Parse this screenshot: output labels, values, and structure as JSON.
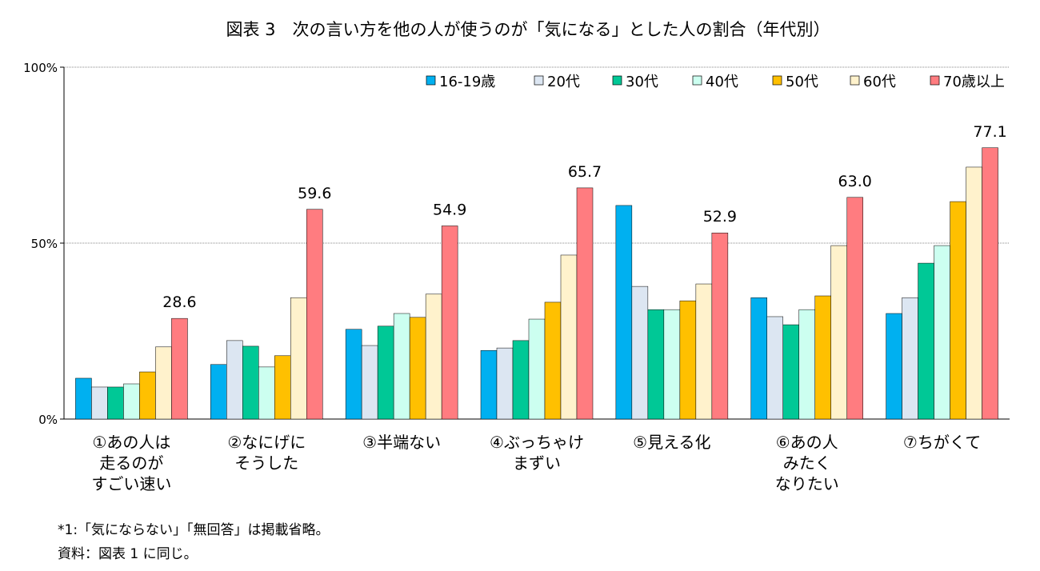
{
  "chart_data": {
    "type": "bar",
    "title": "図表 3　次の言い方を他の人が使うのが「気になる」とした人の割合（年代別）",
    "ylim": [
      0,
      100
    ],
    "yticks": [
      "0%",
      "50%",
      "100%"
    ],
    "grid": true,
    "legend_position": "top-right",
    "categories": [
      [
        "①あの人は",
        "走るのが",
        "すごい速い"
      ],
      [
        "②なにげに",
        "そうした"
      ],
      [
        "③半端ない"
      ],
      [
        "④ぶっちゃけ",
        "まずい"
      ],
      [
        "⑤見える化"
      ],
      [
        "⑥あの人",
        "みたく",
        "なりたい"
      ],
      [
        "⑦ちがくて"
      ]
    ],
    "series": [
      {
        "name": "16-19歳",
        "color": "#00b0f0",
        "values": [
          11.6,
          15.5,
          25.5,
          19.5,
          60.7,
          34.5,
          30.0
        ]
      },
      {
        "name": "20代",
        "color": "#dce6f2",
        "values": [
          9.1,
          22.3,
          20.9,
          20.2,
          37.7,
          29.1,
          34.5
        ]
      },
      {
        "name": "30代",
        "color": "#00c896",
        "values": [
          9.1,
          20.7,
          26.4,
          22.3,
          31.1,
          26.8,
          44.3
        ]
      },
      {
        "name": "40代",
        "color": "#ccfff0",
        "values": [
          10.0,
          14.8,
          30.0,
          28.4,
          31.1,
          31.1,
          49.3
        ]
      },
      {
        "name": "50代",
        "color": "#ffc000",
        "values": [
          13.4,
          18.0,
          28.9,
          33.2,
          33.6,
          35.0,
          61.8
        ]
      },
      {
        "name": "60代",
        "color": "#fff2cc",
        "values": [
          20.5,
          34.5,
          35.5,
          46.6,
          38.4,
          49.3,
          71.6
        ]
      },
      {
        "name": "70歳以上",
        "color": "#ff7c80",
        "values": [
          28.6,
          59.6,
          54.9,
          65.7,
          52.9,
          63.0,
          77.1
        ]
      }
    ],
    "data_labels": [
      "28.6",
      "59.6",
      "54.9",
      "65.7",
      "52.9",
      "63.0",
      "77.1"
    ]
  },
  "notes": [
    "*1:「気にならない」「無回答」は掲載省略。",
    "資料：図表 1 に同じ。"
  ]
}
